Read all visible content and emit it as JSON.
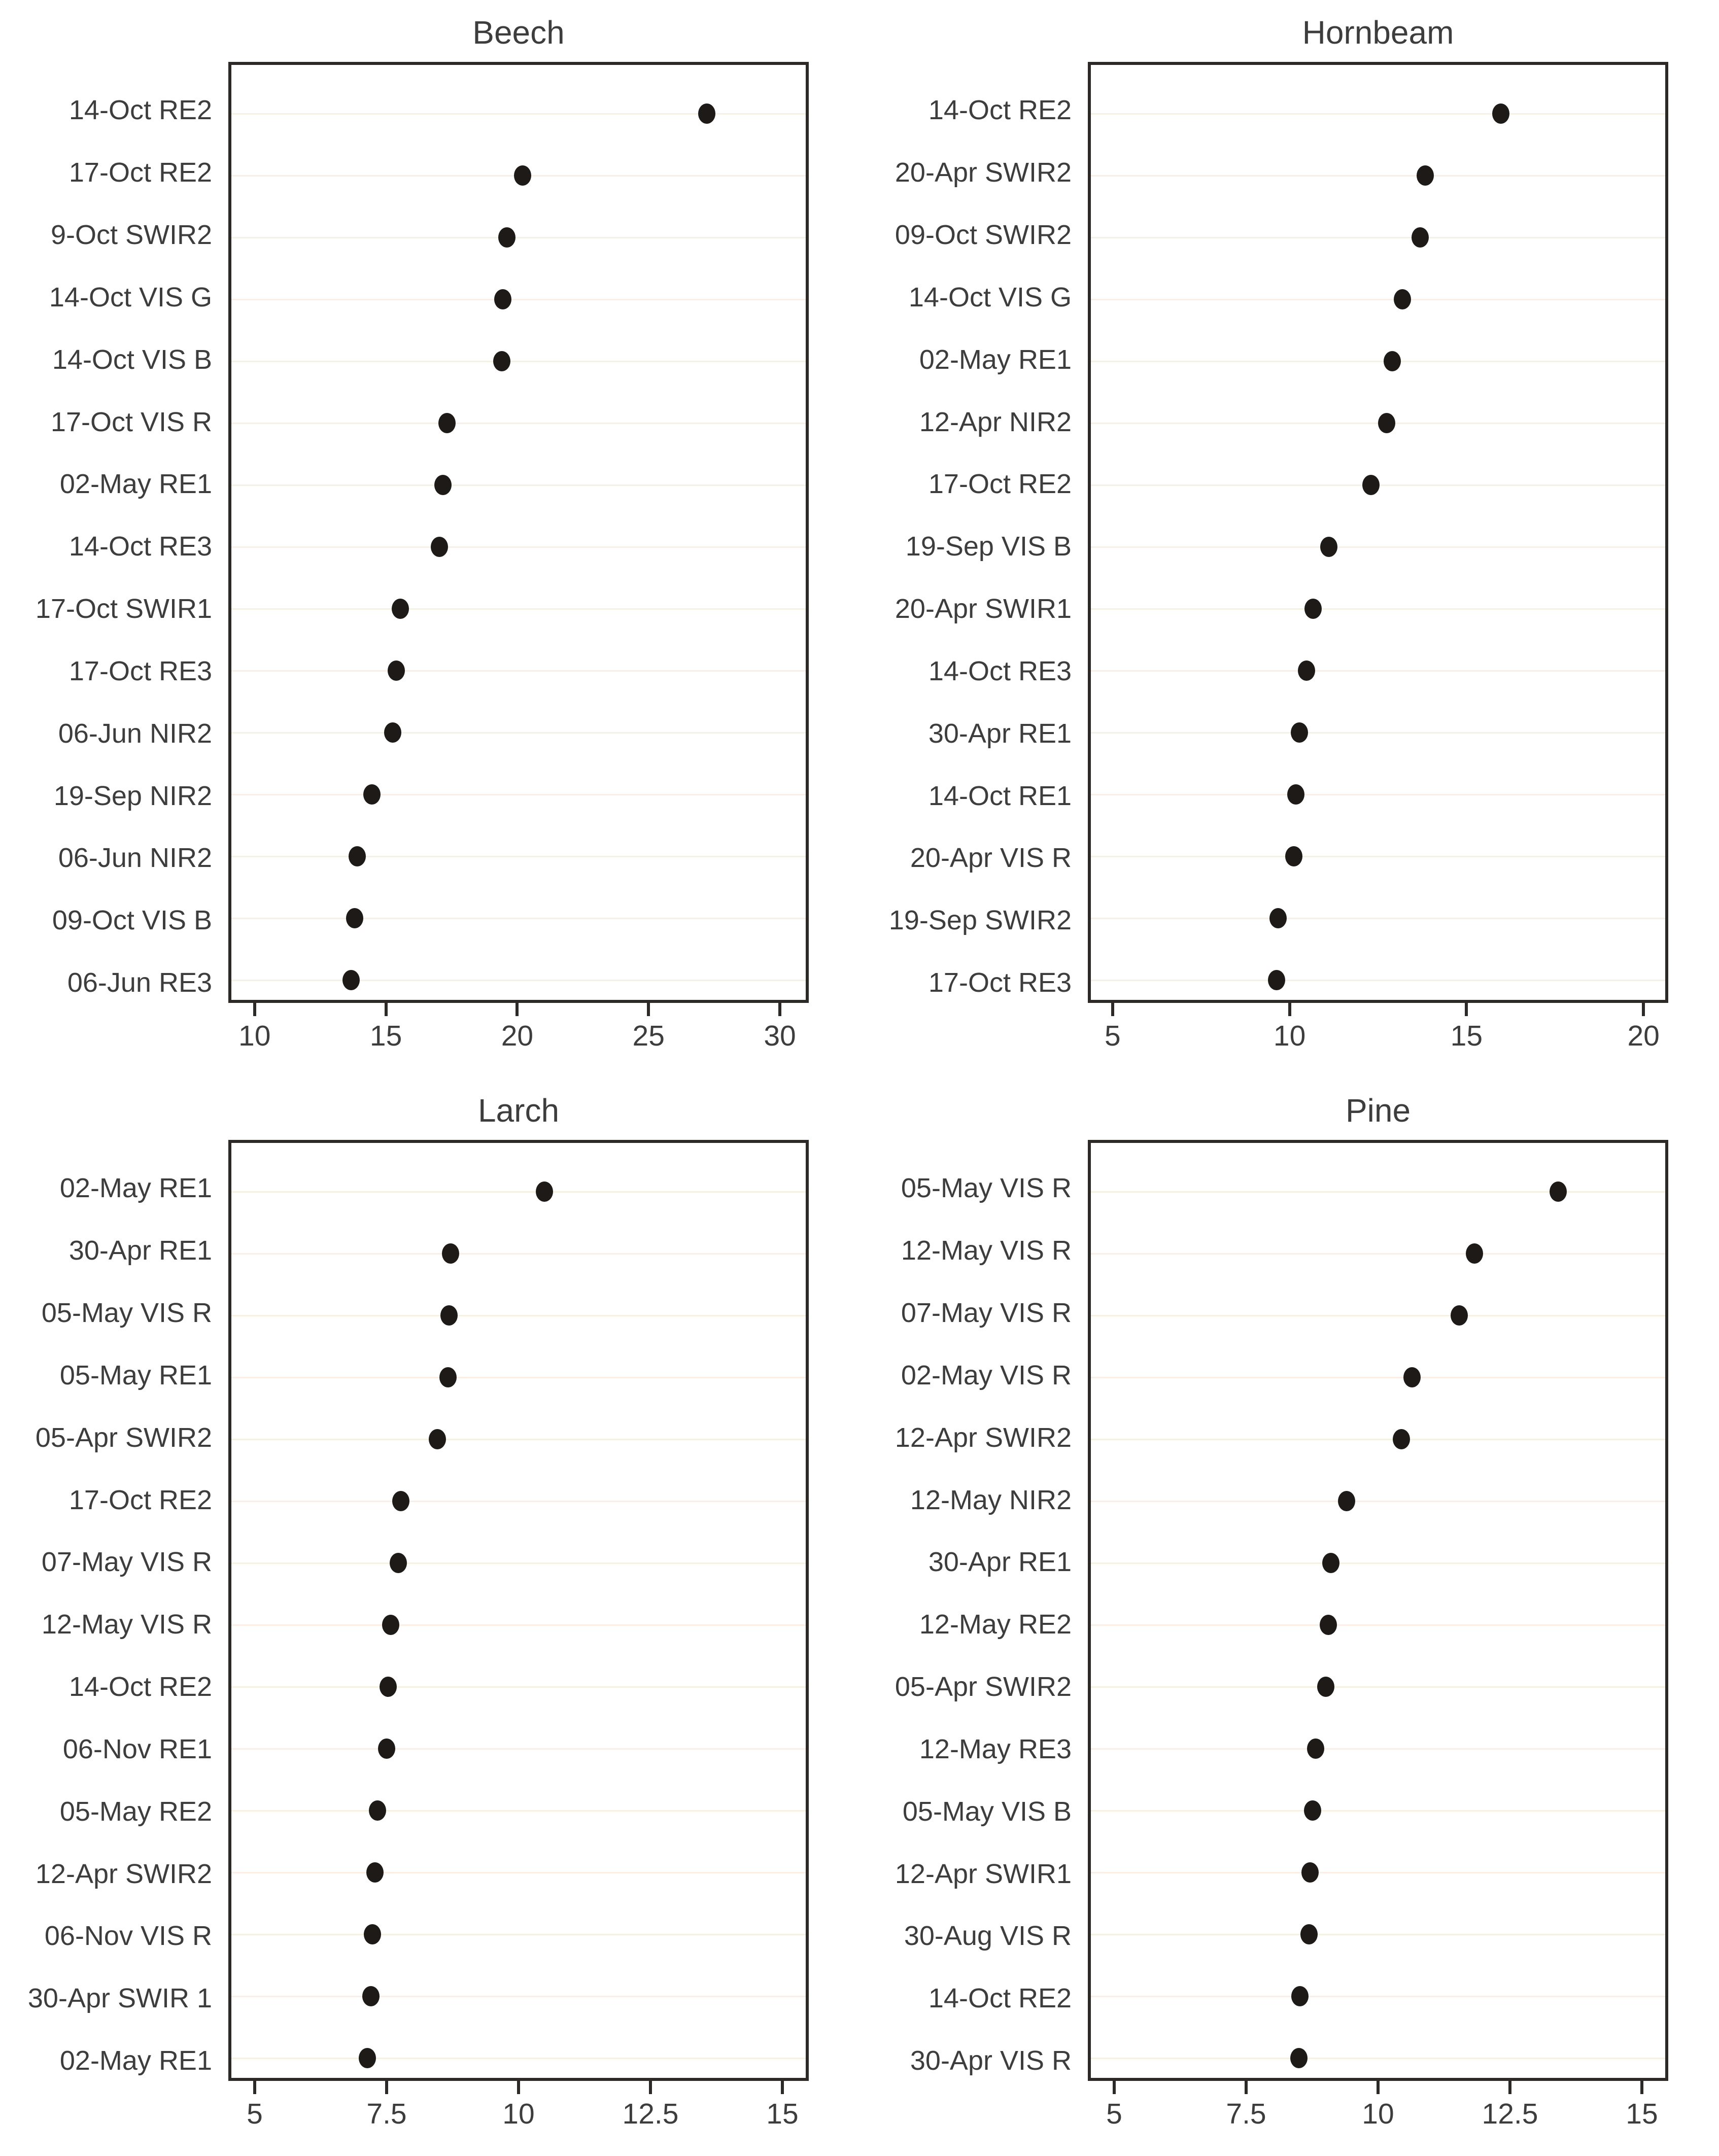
{
  "figure": {
    "background": "#ffffff"
  },
  "colors": {
    "dot": "#1d1a17",
    "panel_border": "#2c2926",
    "text": "#3d3d3d",
    "gridline_a": "#f5f2e4",
    "gridline_b": "#faefe7"
  },
  "chart_data": [
    {
      "type": "scatter",
      "title": "Beech",
      "orientation": "horizontal-dotplot",
      "grid": "horizontal-faint",
      "legend": "none",
      "categories": [
        "14-Oct RE2",
        "17-Oct RE2",
        "9-Oct SWIR2",
        "14-Oct VIS G",
        "14-Oct VIS B",
        "17-Oct VIS R",
        "02-May RE1",
        "14-Oct RE3",
        "17-Oct SWIR1",
        "17-Oct RE3",
        "06-Jun NIR2",
        "19-Sep NIR2",
        "06-Jun NIR2",
        "09-Oct VIS B",
        "06-Jun RE3"
      ],
      "values": [
        27.3,
        20.2,
        19.6,
        19.45,
        19.4,
        17.3,
        17.15,
        17.0,
        15.5,
        15.35,
        15.2,
        14.4,
        13.85,
        13.75,
        13.6
      ],
      "xlim": [
        9.0,
        31.1
      ],
      "xticks": [
        10,
        15,
        20,
        25,
        30
      ],
      "xtick_labels": [
        "10",
        "15",
        "20",
        "25",
        "30"
      ]
    },
    {
      "type": "scatter",
      "title": "Hornbeam",
      "orientation": "horizontal-dotplot",
      "grid": "horizontal-faint",
      "legend": "none",
      "categories": [
        "14-Oct RE2",
        "20-Apr SWIR2",
        "09-Oct SWIR2",
        "14-Oct VIS G",
        "02-May RE1",
        "12-Apr NIR2",
        "17-Oct RE2",
        "19-Sep VIS B",
        "20-Apr SWIR1",
        "14-Oct RE3",
        "30-Apr RE1",
        "14-Oct RE1",
        "20-Apr VIS R",
        "19-Sep SWIR2",
        "17-Oct RE3"
      ],
      "values": [
        16.0,
        13.85,
        13.7,
        13.2,
        12.9,
        12.75,
        12.3,
        11.1,
        10.65,
        10.45,
        10.25,
        10.15,
        10.1,
        9.65,
        9.6
      ],
      "xlim": [
        4.3,
        20.7
      ],
      "xticks": [
        5,
        10,
        15,
        20
      ],
      "xtick_labels": [
        "5",
        "10",
        "15",
        "20"
      ]
    },
    {
      "type": "scatter",
      "title": "Larch",
      "orientation": "horizontal-dotplot",
      "grid": "horizontal-faint",
      "legend": "none",
      "categories": [
        "02-May RE1",
        "30-Apr RE1",
        "05-May VIS R",
        "05-May RE1",
        "05-Apr SWIR2",
        "17-Oct RE2",
        "07-May VIS R",
        "12-May VIS R",
        "14-Oct RE2",
        "06-Nov RE1",
        "05-May RE2",
        "12-Apr SWIR2",
        "06-Nov VIS R",
        "30-Apr SWIR 1",
        "02-May RE1"
      ],
      "values": [
        10.5,
        8.7,
        8.67,
        8.65,
        8.45,
        7.75,
        7.7,
        7.55,
        7.5,
        7.47,
        7.3,
        7.25,
        7.2,
        7.17,
        7.1
      ],
      "xlim": [
        4.5,
        15.5
      ],
      "xticks": [
        5,
        7.5,
        10,
        12.5,
        15
      ],
      "xtick_labels": [
        "5",
        "7.5",
        "10",
        "12.5",
        "15"
      ]
    },
    {
      "type": "scatter",
      "title": "Pine",
      "orientation": "horizontal-dotplot",
      "grid": "horizontal-faint",
      "legend": "none",
      "categories": [
        "05-May VIS R",
        "12-May VIS R",
        "07-May VIS R",
        "02-May VIS R",
        "12-Apr SWIR2",
        "12-May NIR2",
        "30-Apr RE1",
        "12-May RE2",
        "05-Apr SWIR2",
        "12-May RE3",
        "05-May VIS B",
        "12-Apr SWIR1",
        "30-Aug VIS R",
        "14-Oct RE2",
        "30-Apr VIS R"
      ],
      "values": [
        13.45,
        11.85,
        11.55,
        10.65,
        10.45,
        9.4,
        9.1,
        9.05,
        9.0,
        8.8,
        8.75,
        8.7,
        8.68,
        8.5,
        8.48
      ],
      "xlim": [
        4.5,
        15.5
      ],
      "xticks": [
        5,
        7.5,
        10,
        12.5,
        15
      ],
      "xtick_labels": [
        "5",
        "7.5",
        "10",
        "12.5",
        "15"
      ]
    }
  ]
}
